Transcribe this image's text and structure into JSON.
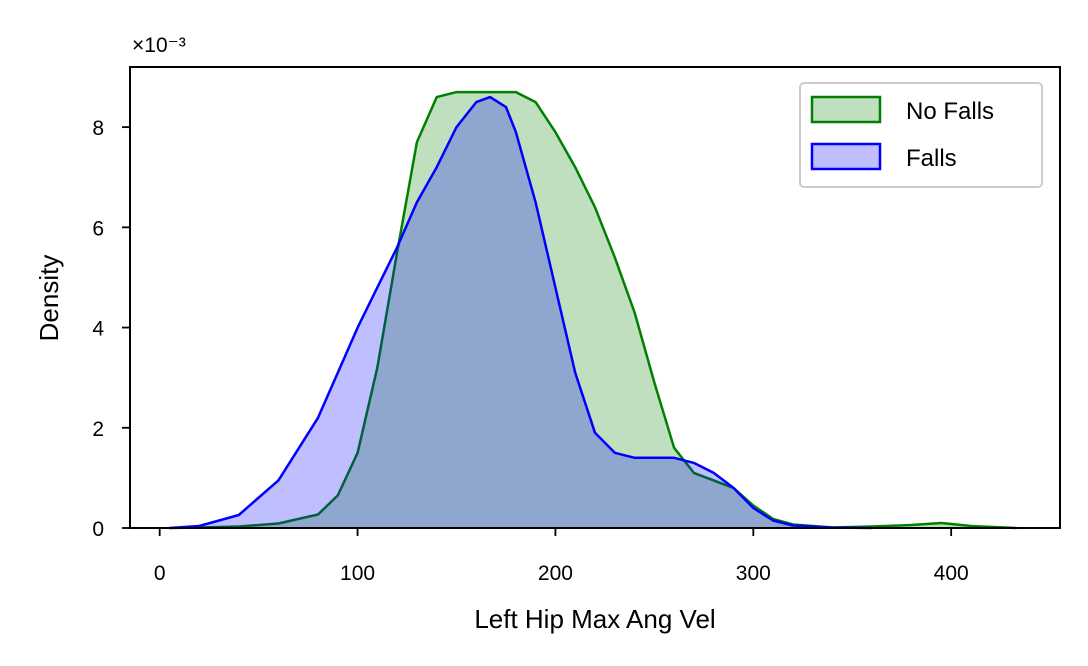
{
  "chart_data": {
    "type": "area",
    "title": "",
    "xlabel": "Left Hip Max Ang Vel",
    "ylabel": "Density",
    "y_scale_label": "×10⁻³",
    "xlim": [
      -15,
      455
    ],
    "ylim": [
      0,
      0.0092
    ],
    "x_ticks": [
      0,
      100,
      200,
      300,
      400
    ],
    "y_ticks": [
      0,
      0.002,
      0.004,
      0.006,
      0.008
    ],
    "y_tick_labels": [
      "0",
      "2",
      "4",
      "6",
      "8"
    ],
    "grid": false,
    "legend_position": "top-right",
    "series": [
      {
        "name": "No Falls",
        "color": "#008000",
        "fill": "#008000",
        "x": [
          5,
          20,
          40,
          60,
          80,
          90,
          100,
          110,
          120,
          130,
          140,
          150,
          160,
          170,
          180,
          190,
          200,
          210,
          220,
          230,
          240,
          250,
          260,
          270,
          280,
          290,
          300,
          310,
          320,
          340,
          360,
          380,
          395,
          410,
          433
        ],
        "y": [
          0.0,
          1e-05,
          3e-05,
          9e-05,
          0.00027,
          0.00065,
          0.0015,
          0.0032,
          0.0055,
          0.0077,
          0.0086,
          0.0087,
          0.0087,
          0.0087,
          0.0087,
          0.0085,
          0.0079,
          0.0072,
          0.0064,
          0.0054,
          0.0043,
          0.0029,
          0.0016,
          0.0011,
          0.00095,
          0.0008,
          0.00045,
          0.00018,
          7e-05,
          1e-05,
          3e-05,
          6e-05,
          0.0001,
          4e-05,
          0.0
        ]
      },
      {
        "name": "Falls",
        "color": "#0000ff",
        "fill": "#0000ff",
        "x": [
          5,
          20,
          40,
          60,
          80,
          90,
          100,
          110,
          120,
          130,
          140,
          150,
          160,
          167,
          175,
          180,
          190,
          200,
          210,
          220,
          230,
          240,
          250,
          260,
          270,
          280,
          290,
          300,
          310,
          320,
          340,
          360
        ],
        "y": [
          0.0,
          4e-05,
          0.00026,
          0.00095,
          0.0022,
          0.0031,
          0.004,
          0.0048,
          0.0056,
          0.0065,
          0.0072,
          0.008,
          0.0085,
          0.0086,
          0.0084,
          0.0079,
          0.0065,
          0.0048,
          0.0031,
          0.0019,
          0.0015,
          0.0014,
          0.0014,
          0.0014,
          0.0013,
          0.0011,
          0.0008,
          0.0004,
          0.00015,
          5e-05,
          1e-05,
          0.0
        ]
      }
    ]
  }
}
